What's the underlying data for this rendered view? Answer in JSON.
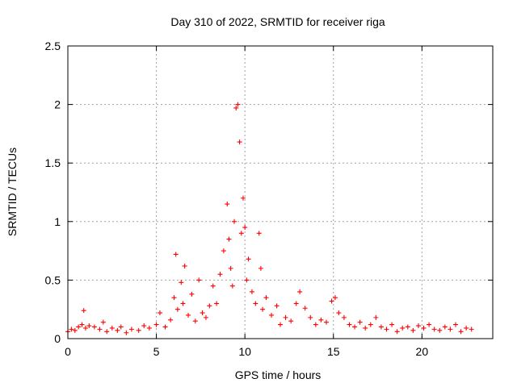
{
  "chart_data": {
    "type": "scatter",
    "title": "Day 310 of 2022, SRMTID for receiver riga",
    "xlabel": "GPS time / hours",
    "ylabel": "SRMTID / TECUs",
    "xlim": [
      0,
      24
    ],
    "ylim": [
      0,
      2.5
    ],
    "xticks": [
      0,
      5,
      10,
      15,
      20
    ],
    "xtick_labels": [
      "0",
      "5",
      "10",
      "15",
      "20"
    ],
    "yticks": [
      0,
      0.5,
      1,
      1.5,
      2,
      2.5
    ],
    "ytick_labels": [
      "0",
      "0.5",
      "1",
      "1.5",
      "2",
      "2.5"
    ],
    "grid": true,
    "marker": "+",
    "color": "#ff0000",
    "series": [
      {
        "name": "SRMTID",
        "x": [
          0.0,
          0.2,
          0.4,
          0.6,
          0.8,
          0.9,
          1.0,
          1.2,
          1.5,
          1.8,
          2.0,
          2.2,
          2.5,
          2.8,
          3.0,
          3.3,
          3.6,
          4.0,
          4.3,
          4.6,
          5.0,
          5.2,
          5.5,
          5.8,
          6.0,
          6.1,
          6.2,
          6.4,
          6.5,
          6.6,
          6.8,
          7.0,
          7.2,
          7.4,
          7.6,
          7.8,
          8.0,
          8.2,
          8.4,
          8.6,
          8.8,
          9.0,
          9.1,
          9.2,
          9.3,
          9.4,
          9.5,
          9.6,
          9.7,
          9.8,
          9.9,
          10.0,
          10.1,
          10.2,
          10.4,
          10.6,
          10.8,
          10.9,
          11.0,
          11.2,
          11.5,
          11.8,
          12.0,
          12.3,
          12.6,
          12.9,
          13.1,
          13.4,
          13.7,
          14.0,
          14.3,
          14.6,
          14.9,
          15.1,
          15.3,
          15.6,
          15.9,
          16.2,
          16.5,
          16.8,
          17.1,
          17.4,
          17.7,
          18.0,
          18.3,
          18.6,
          18.9,
          19.2,
          19.5,
          19.8,
          20.1,
          20.4,
          20.7,
          21.0,
          21.3,
          21.6,
          21.9,
          22.2,
          22.5,
          22.8
        ],
        "y": [
          0.06,
          0.08,
          0.07,
          0.1,
          0.12,
          0.24,
          0.09,
          0.11,
          0.1,
          0.08,
          0.14,
          0.06,
          0.09,
          0.07,
          0.1,
          0.05,
          0.08,
          0.07,
          0.11,
          0.09,
          0.12,
          0.22,
          0.1,
          0.16,
          0.35,
          0.72,
          0.25,
          0.48,
          0.3,
          0.62,
          0.2,
          0.38,
          0.15,
          0.5,
          0.22,
          0.18,
          0.28,
          0.45,
          0.3,
          0.55,
          0.75,
          1.15,
          0.85,
          0.6,
          0.45,
          1.0,
          1.97,
          2.0,
          1.68,
          0.9,
          1.2,
          0.95,
          0.5,
          0.68,
          0.4,
          0.3,
          0.9,
          0.6,
          0.25,
          0.35,
          0.2,
          0.28,
          0.12,
          0.18,
          0.15,
          0.3,
          0.4,
          0.26,
          0.18,
          0.12,
          0.16,
          0.14,
          0.32,
          0.35,
          0.22,
          0.18,
          0.12,
          0.1,
          0.14,
          0.09,
          0.12,
          0.18,
          0.1,
          0.08,
          0.12,
          0.06,
          0.09,
          0.1,
          0.07,
          0.11,
          0.09,
          0.12,
          0.08,
          0.07,
          0.1,
          0.08,
          0.12,
          0.06,
          0.09,
          0.08
        ]
      }
    ]
  }
}
